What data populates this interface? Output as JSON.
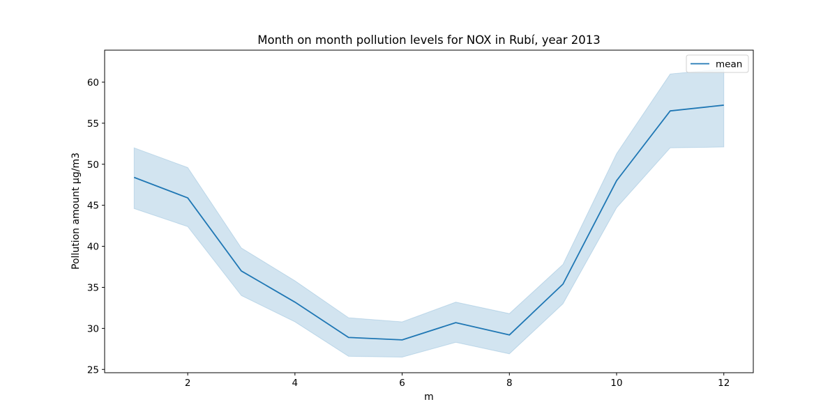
{
  "chart_data": {
    "type": "line",
    "title": "Month on month pollution levels for NOX in Rubí, year 2013",
    "xlabel": "m",
    "ylabel": "Pollution amount µg/m3",
    "x": [
      1,
      2,
      3,
      4,
      5,
      6,
      7,
      8,
      9,
      10,
      11,
      12
    ],
    "xlim": [
      0.45,
      12.55
    ],
    "ylim": [
      24.6,
      63.9
    ],
    "xticks": [
      2,
      4,
      6,
      8,
      10,
      12
    ],
    "yticks": [
      25,
      30,
      35,
      40,
      45,
      50,
      55,
      60
    ],
    "grid": false,
    "legend_position": "top-right",
    "series": [
      {
        "name": "mean",
        "color": "#1f77b4",
        "values": [
          48.4,
          45.9,
          37.0,
          33.2,
          28.9,
          28.6,
          30.7,
          29.2,
          35.4,
          48.0,
          56.5,
          57.2
        ],
        "band_lower": [
          44.6,
          42.4,
          34.0,
          30.8,
          26.6,
          26.5,
          28.3,
          26.9,
          33.0,
          44.7,
          52.0,
          52.1
        ],
        "band_upper": [
          52.0,
          49.6,
          39.8,
          35.8,
          31.3,
          30.8,
          33.2,
          31.8,
          37.8,
          51.3,
          61.0,
          61.6
        ]
      }
    ]
  }
}
